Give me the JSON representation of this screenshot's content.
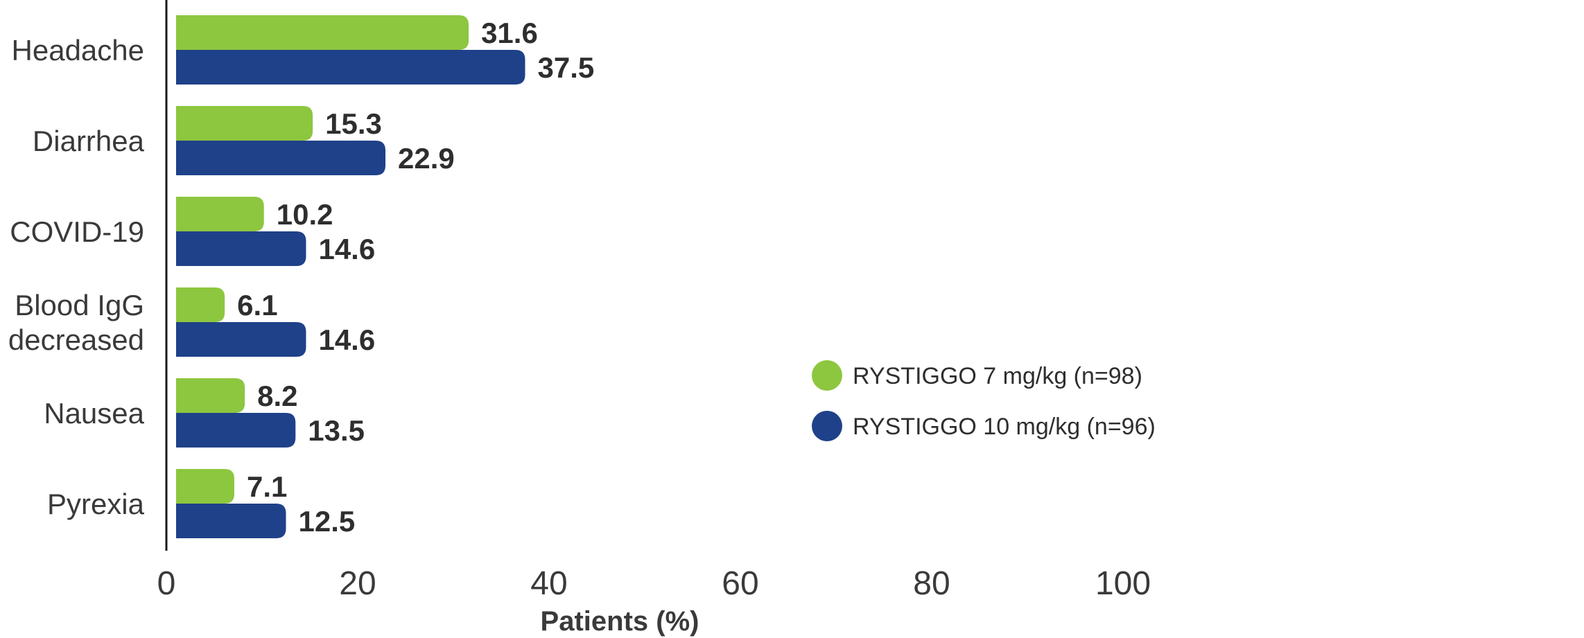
{
  "chart_data": {
    "type": "bar",
    "orientation": "horizontal",
    "categories": [
      [
        "Headache"
      ],
      [
        "Diarrhea"
      ],
      [
        "COVID-19"
      ],
      [
        "Blood IgG",
        "decreased"
      ],
      [
        "Nausea"
      ],
      [
        "Pyrexia"
      ]
    ],
    "series": [
      {
        "name": "RYSTIGGO 7 mg/kg (n=98)",
        "color": "#8dc63f",
        "values": [
          31.6,
          15.3,
          10.2,
          6.1,
          8.2,
          7.1
        ]
      },
      {
        "name": "RYSTIGGO 10 mg/kg (n=96)",
        "color": "#1f4189",
        "values": [
          37.5,
          22.9,
          14.6,
          14.6,
          13.5,
          12.5
        ]
      }
    ],
    "xlabel": "Patients (%)",
    "xlim": [
      0,
      100
    ],
    "xticks": [
      0,
      20,
      40,
      60,
      80,
      100
    ],
    "grid": false,
    "legend_position": "center-right"
  }
}
